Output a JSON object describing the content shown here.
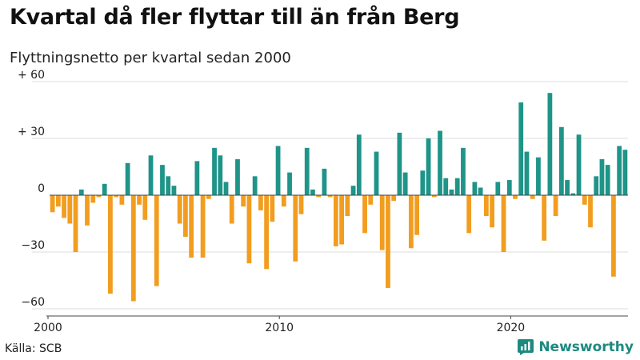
{
  "title": "Kvartal då fler flyttar till än från Berg",
  "subtitle": "Flyttningsnetto per kvartal sedan 2000",
  "source": "Källa: SCB",
  "brand": "Newsworthy",
  "colors": {
    "positive": "#1f9488",
    "negative": "#f29d1f",
    "grid": "#dddddd",
    "baseline": "#444444"
  },
  "chart_data": {
    "type": "bar",
    "title": "Kvartal då fler flyttar till än från Berg",
    "subtitle": "Flyttningsnetto per kvartal sedan 2000",
    "ylim": [
      -60,
      60
    ],
    "yticks": [
      {
        "value": 60,
        "label": "+ 60"
      },
      {
        "value": 30,
        "label": "+ 30"
      },
      {
        "value": 0,
        "label": "0"
      },
      {
        "value": -30,
        "label": "−30"
      },
      {
        "value": -60,
        "label": "−60"
      }
    ],
    "xticks": [
      {
        "value": 2000,
        "label": "2000"
      },
      {
        "value": 2010,
        "label": "2010"
      },
      {
        "value": 2020,
        "label": "2020"
      }
    ],
    "x_start": "2000 Q1",
    "grid": true,
    "values": [
      -9,
      -6,
      -12,
      -15,
      -30,
      3,
      -16,
      -4,
      -1,
      6,
      -52,
      -1,
      -5,
      17,
      -56,
      -5,
      -13,
      21,
      -48,
      16,
      10,
      5,
      -15,
      -22,
      -33,
      18,
      -33,
      -2,
      25,
      21,
      7,
      -15,
      19,
      -6,
      -36,
      10,
      -8,
      -39,
      -14,
      26,
      -6,
      12,
      -35,
      -10,
      25,
      3,
      -1,
      14,
      -1,
      -27,
      -26,
      -11,
      5,
      32,
      -20,
      -5,
      23,
      -29,
      -49,
      -3,
      33,
      12,
      -28,
      -21,
      13,
      30,
      -1,
      34,
      9,
      3,
      9,
      25,
      -20,
      7,
      4,
      -11,
      -17,
      7,
      -30,
      8,
      -2,
      49,
      23,
      -2,
      20,
      -24,
      54,
      -11,
      36,
      8,
      1,
      32,
      -5,
      -17,
      10,
      19,
      16,
      -43,
      26,
      24
    ]
  }
}
